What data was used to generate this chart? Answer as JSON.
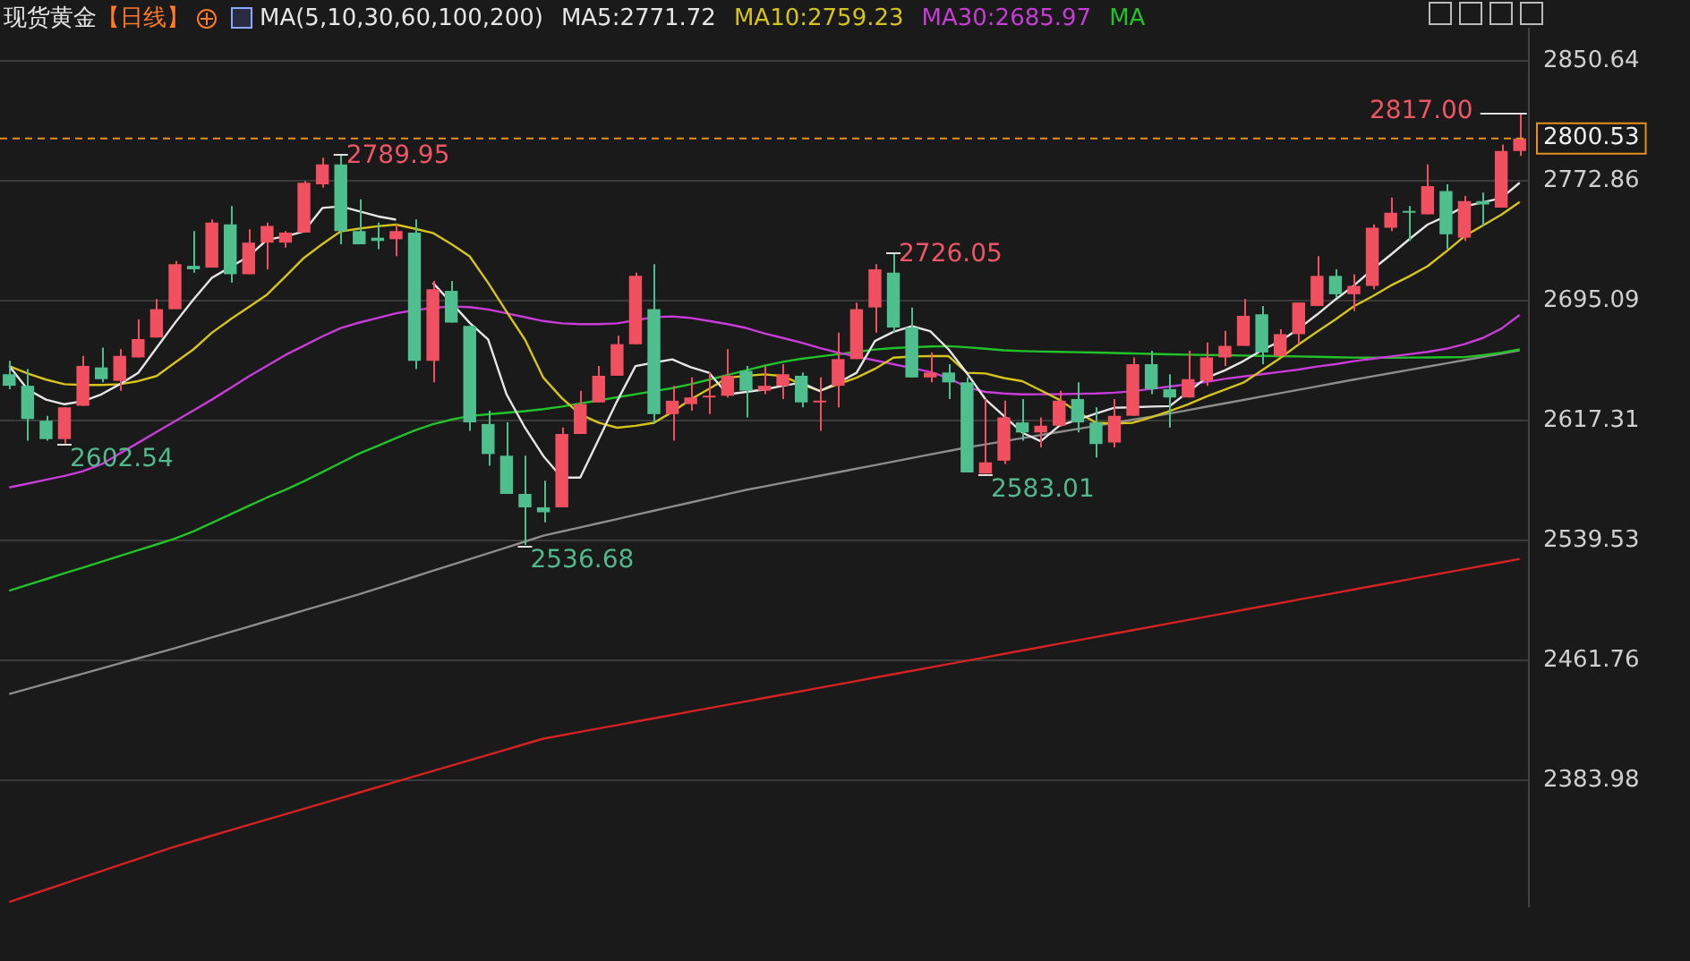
{
  "chart_data": {
    "type": "candlestick",
    "title": "现货黄金",
    "subtitle": "【日线】",
    "annotations": [
      "MA(5,10,30,60,100,200)",
      "2789.95",
      "2602.54",
      "2536.68",
      "2726.05",
      "2583.01",
      "2817.00"
    ],
    "categories": [
      null,
      null,
      null,
      null,
      null,
      null,
      null,
      null,
      null,
      null,
      null,
      null,
      null,
      null,
      null,
      null,
      null,
      null,
      null,
      null,
      null,
      null,
      null,
      null,
      null,
      null,
      null,
      null,
      null,
      null,
      null,
      null,
      null,
      null,
      null,
      null,
      null,
      null,
      null,
      null,
      null,
      null,
      null,
      null,
      null,
      null,
      null,
      null,
      null,
      null,
      null,
      null,
      null,
      null,
      null,
      null,
      null,
      null,
      null,
      null,
      null,
      null,
      null,
      null,
      null,
      null,
      null,
      null,
      null,
      null,
      null,
      null,
      null,
      null,
      null,
      null,
      null,
      null,
      null,
      null,
      null,
      null,
      null
    ],
    "ohlc": [
      [
        2647.5,
        2656.2,
        2637.8,
        2640.0
      ],
      [
        2640.0,
        2650.8,
        2604.3,
        2618.4
      ],
      [
        2617.3,
        2620.5,
        2604.3,
        2605.4
      ],
      [
        2605.4,
        2626.0,
        2602.54,
        2626.0
      ],
      [
        2627.0,
        2659.4,
        2627.0,
        2652.9
      ],
      [
        2651.9,
        2664.8,
        2642.2,
        2644.3
      ],
      [
        2643.2,
        2663.8,
        2636.8,
        2659.4
      ],
      [
        2658.4,
        2683.2,
        2658.4,
        2670.3
      ],
      [
        2671.3,
        2696.2,
        2671.3,
        2689.7
      ],
      [
        2689.7,
        2721.0,
        2689.7,
        2718.9
      ],
      [
        2717.8,
        2740.4,
        2713.4,
        2715.6
      ],
      [
        2716.7,
        2748.0,
        2716.7,
        2745.9
      ],
      [
        2744.8,
        2756.7,
        2707.0,
        2712.4
      ],
      [
        2712.4,
        2741.5,
        2712.4,
        2732.9
      ],
      [
        2732.9,
        2745.9,
        2715.6,
        2743.7
      ],
      [
        2732.9,
        2740.4,
        2729.7,
        2739.4
      ],
      [
        2739.4,
        2772.9,
        2739.4,
        2771.8
      ],
      [
        2770.7,
        2788.0,
        2768.5,
        2783.7
      ],
      [
        2783.7,
        2789.95,
        2731.8,
        2740.4
      ],
      [
        2740.4,
        2761.0,
        2731.8,
        2731.8
      ],
      [
        2736.1,
        2745.9,
        2728.6,
        2734.0
      ],
      [
        2735.1,
        2744.8,
        2724.2,
        2740.4
      ],
      [
        2739.4,
        2748.0,
        2650.8,
        2656.2
      ],
      [
        2656.2,
        2708.0,
        2642.2,
        2702.6
      ],
      [
        2701.6,
        2708.0,
        2681.0,
        2681.0
      ],
      [
        2678.9,
        2678.9,
        2610.8,
        2616.2
      ],
      [
        2615.2,
        2623.8,
        2588.1,
        2595.7
      ],
      [
        2594.6,
        2616.2,
        2569.8,
        2569.8
      ],
      [
        2569.8,
        2594.6,
        2536.68,
        2561.1
      ],
      [
        2561.1,
        2578.4,
        2551.4,
        2557.9
      ],
      [
        2561.1,
        2613.0,
        2561.1,
        2608.7
      ],
      [
        2608.7,
        2636.8,
        2608.7,
        2628.1
      ],
      [
        2629.2,
        2652.9,
        2629.2,
        2646.5
      ],
      [
        2646.5,
        2672.4,
        2646.5,
        2667.0
      ],
      [
        2667.0,
        2713.4,
        2667.0,
        2711.3
      ],
      [
        2689.7,
        2718.9,
        2615.2,
        2621.6
      ],
      [
        2621.6,
        2640.0,
        2604.3,
        2630.3
      ],
      [
        2628.1,
        2645.4,
        2623.8,
        2632.4
      ],
      [
        2632.4,
        2648.6,
        2621.6,
        2633.5
      ],
      [
        2633.5,
        2663.8,
        2632.4,
        2646.5
      ],
      [
        2649.7,
        2652.9,
        2619.5,
        2636.8
      ],
      [
        2636.8,
        2652.9,
        2634.6,
        2640.0
      ],
      [
        2640.0,
        2654.0,
        2631.4,
        2647.5
      ],
      [
        2646.5,
        2648.6,
        2626.0,
        2629.2
      ],
      [
        2629.2,
        2645.4,
        2610.8,
        2630.3
      ],
      [
        2640.0,
        2674.5,
        2626.0,
        2657.3
      ],
      [
        2657.3,
        2694.0,
        2657.3,
        2689.7
      ],
      [
        2690.8,
        2718.9,
        2674.5,
        2715.6
      ],
      [
        2713.4,
        2726.05,
        2674.5,
        2677.8
      ],
      [
        2677.8,
        2690.8,
        2645.4,
        2645.4
      ],
      [
        2645.4,
        2661.6,
        2642.2,
        2648.6
      ],
      [
        2648.6,
        2654.0,
        2631.4,
        2642.2
      ],
      [
        2642.2,
        2645.4,
        2583.8,
        2583.8
      ],
      [
        2583.01,
        2631.4,
        2583.01,
        2590.3
      ],
      [
        2591.4,
        2630.3,
        2589.2,
        2619.5
      ],
      [
        2616.2,
        2631.4,
        2604.3,
        2609.7
      ],
      [
        2609.7,
        2619.5,
        2600.0,
        2614.1
      ],
      [
        2614.1,
        2636.8,
        2614.1,
        2630.3
      ],
      [
        2631.4,
        2642.2,
        2609.7,
        2616.2
      ],
      [
        2616.2,
        2626.0,
        2593.5,
        2602.2
      ],
      [
        2603.2,
        2631.4,
        2600.0,
        2620.5
      ],
      [
        2620.5,
        2658.4,
        2620.5,
        2654.0
      ],
      [
        2654.0,
        2662.7,
        2634.6,
        2637.8
      ],
      [
        2637.8,
        2647.5,
        2613.0,
        2632.4
      ],
      [
        2632.4,
        2662.7,
        2632.4,
        2644.3
      ],
      [
        2643.2,
        2668.1,
        2640.0,
        2658.4
      ],
      [
        2658.4,
        2675.6,
        2652.9,
        2665.9
      ],
      [
        2665.9,
        2696.2,
        2665.9,
        2685.4
      ],
      [
        2686.4,
        2691.8,
        2654.0,
        2661.6
      ],
      [
        2659.4,
        2676.7,
        2659.4,
        2673.5
      ],
      [
        2673.5,
        2694.0,
        2667.0,
        2694.0
      ],
      [
        2691.8,
        2724.2,
        2691.8,
        2711.3
      ],
      [
        2711.3,
        2715.6,
        2697.2,
        2699.4
      ],
      [
        2699.4,
        2712.4,
        2688.6,
        2704.8
      ],
      [
        2704.8,
        2744.8,
        2702.6,
        2742.6
      ],
      [
        2742.6,
        2762.1,
        2740.4,
        2752.3
      ],
      [
        2753.4,
        2756.7,
        2734.0,
        2752.3
      ],
      [
        2751.3,
        2783.7,
        2751.3,
        2769.6
      ],
      [
        2766.4,
        2770.7,
        2728.6,
        2738.3
      ],
      [
        2736.1,
        2763.2,
        2734.0,
        2759.9
      ],
      [
        2759.9,
        2765.3,
        2743.7,
        2757.7
      ],
      [
        2755.6,
        2796.6,
        2755.6,
        2792.3
      ],
      [
        2792.3,
        2817.0,
        2789.1,
        2800.53
      ]
    ],
    "colors": [
      "#4fbf8f",
      "#4fbf8f",
      "#4fbf8f",
      "#f0505f",
      "#f0505f",
      "#4fbf8f",
      "#f0505f",
      "#f0505f",
      "#f0505f",
      "#f0505f",
      "#4fbf8f",
      "#f0505f",
      "#4fbf8f",
      "#f0505f",
      "#f0505f",
      "#f0505f",
      "#f0505f",
      "#f0505f",
      "#4fbf8f",
      "#4fbf8f",
      "#4fbf8f",
      "#f0505f",
      "#4fbf8f",
      "#f0505f",
      "#4fbf8f",
      "#4fbf8f",
      "#4fbf8f",
      "#4fbf8f",
      "#4fbf8f",
      "#4fbf8f",
      "#f0505f",
      "#f0505f",
      "#f0505f",
      "#f0505f",
      "#f0505f",
      "#4fbf8f",
      "#f0505f",
      "#f0505f",
      "#f0505f",
      "#f0505f",
      "#4fbf8f",
      "#f0505f",
      "#f0505f",
      "#4fbf8f",
      "#f0505f",
      "#f0505f",
      "#f0505f",
      "#f0505f",
      "#4fbf8f",
      "#4fbf8f",
      "#f0505f",
      "#4fbf8f",
      "#4fbf8f",
      "#f0505f",
      "#f0505f",
      "#4fbf8f",
      "#f0505f",
      "#f0505f",
      "#4fbf8f",
      "#4fbf8f",
      "#f0505f",
      "#f0505f",
      "#4fbf8f",
      "#4fbf8f",
      "#f0505f",
      "#f0505f",
      "#f0505f",
      "#f0505f",
      "#4fbf8f",
      "#f0505f",
      "#f0505f",
      "#f0505f",
      "#4fbf8f",
      "#f0505f",
      "#f0505f",
      "#f0505f",
      "#4fbf8f",
      "#f0505f",
      "#4fbf8f",
      "#f0505f",
      "#4fbf8f",
      "#f0505f",
      "#f0505f"
    ],
    "series": [
      {
        "type": "line",
        "name": "MA5:2771.72",
        "color": "#e6e6e6",
        "values": [
          2652.8,
          2637.6,
          2631,
          2628,
          2630,
          2634.4,
          2641,
          2648.4,
          2664.6,
          2680.8,
          2696,
          2710,
          2717,
          2724,
          2734.8,
          2737,
          2740.2,
          2755.4,
          2756.4,
          2753.2,
          2750,
          2747.8,
          null,
          2706.8,
          2694,
          2680.8,
          2670,
          2634.4,
          2612.8,
          2594.4,
          2580.4,
          2580.4,
          2605.2,
          2630,
          2652.8,
          2655,
          2657.1,
          2652,
          2648.4,
          2634.4,
          2636,
          2637.6,
          2640,
          2642,
          2636.6,
          2642,
          2648.4,
          2669,
          2675,
          2678.7,
          2675.4,
          2663.6,
          2648,
          2631.2,
          2620.4,
          2609.6,
          2604,
          2614,
          2618,
          2622,
          2625.8,
          2626,
          2626.5,
          2626.8,
          2636,
          2645.2,
          2650,
          2656,
          2663,
          2669,
          2677,
          2686.2,
          2696,
          2705,
          2715.4,
          2725,
          2735,
          2744.6,
          2750,
          2756.4,
          2759,
          2761.8,
          2771.72
        ]
      },
      {
        "type": "line",
        "name": "MA10:2759.23",
        "color": "#d6c41c",
        "values": [
          2652.8,
          2648,
          2644,
          2641,
          2640.5,
          2640.5,
          2641,
          2643,
          2646.3,
          2655,
          2663.6,
          2674.4,
          2683,
          2691,
          2699.2,
          2711,
          2723,
          2732,
          2740.2,
          2742,
          2743.5,
          2744.6,
          2742,
          2739.2,
          2732,
          2724,
          2706.8,
          2688,
          2670,
          2645.2,
          2632,
          2621.4,
          2616,
          2612.8,
          2614,
          2616,
          2623,
          2631.2,
          2638,
          2645.2,
          2646.5,
          2647.4,
          2646.3,
          2641,
          2636.6,
          2641,
          2645.2,
          2651,
          2658.2,
          2659,
          2659.2,
          2659.2,
          2648.4,
          2648,
          2645,
          2643,
          2637,
          2631,
          2623,
          2616,
          2615.5,
          2616,
          2619.5,
          2623.6,
          2628,
          2633,
          2637.5,
          2642,
          2650,
          2658,
          2666.8,
          2675,
          2683,
          2691.6,
          2698,
          2705,
          2711,
          2717.6,
          2727,
          2737,
          2744,
          2751,
          2759.23
        ]
      },
      {
        "type": "line",
        "name": "MA30:2685.97",
        "color": "#c83cd8",
        "values": [
          2574,
          2576.5,
          2579,
          2581.5,
          2584.5,
          2589,
          2596,
          2603,
          2610,
          2617,
          2624,
          2631,
          2638.5,
          2646,
          2653,
          2660,
          2666,
          2672,
          2677.5,
          2681,
          2684,
          2687,
          2689,
          2690.5,
          2691.5,
          2691,
          2689.5,
          2687,
          2684.5,
          2682,
          2680.5,
          2680,
          2680,
          2680.5,
          2682.5,
          2684.5,
          2685,
          2684,
          2682,
          2680,
          2677.5,
          2674,
          2671,
          2668,
          2664.5,
          2661.5,
          2659,
          2656.5,
          2654,
          2651.5,
          2649,
          2645,
          2639,
          2636,
          2635,
          2634.4,
          2634.5,
          2634.6,
          2634.8,
          2635,
          2635.5,
          2636.5,
          2638,
          2639.5,
          2641,
          2642.5,
          2644.5,
          2646,
          2647.5,
          2649,
          2650.5,
          2652.5,
          2654,
          2656,
          2657.5,
          2659,
          2660.5,
          2662,
          2664,
          2667,
          2671,
          2677,
          2685.97
        ]
      },
      {
        "type": "line",
        "name": "MA",
        "color": "#22c32a",
        "values": [
          2507,
          2510.8,
          2514.5,
          2518.3,
          2522,
          2525.8,
          2529.5,
          2533.3,
          2537,
          2540.8,
          2545.5,
          2551,
          2556.5,
          2562,
          2567.5,
          2572.5,
          2578,
          2584,
          2590,
          2596,
          2601,
          2606,
          2611,
          2615,
          2618,
          2620.4,
          2621.5,
          2622.5,
          2623.5,
          2624.8,
          2626.5,
          2628.5,
          2630.5,
          2632.5,
          2634.5,
          2636.5,
          2638.5,
          2641,
          2644,
          2647,
          2650,
          2653,
          2655.5,
          2657.5,
          2659,
          2660.5,
          2662,
          2663.5,
          2664.5,
          2665,
          2665.5,
          2665.7,
          2665,
          2664,
          2663,
          2662.5,
          2662.2,
          2662,
          2661.8,
          2661.6,
          2661.3,
          2661,
          2660.7,
          2660.4,
          2660.2,
          2660,
          2659.8,
          2659.6,
          2659.4,
          2659.2,
          2659,
          2658.8,
          2658.5,
          2658.3,
          2658.2,
          2658.2,
          2658.3,
          2658.4,
          2658.5,
          2658.6,
          2659.8,
          2661.5,
          2663.6
        ]
      },
      {
        "type": "line",
        "color": "#8c8c8c",
        "values": [
          2440,
          2443.3,
          2446.6,
          2449.9,
          2453.2,
          2456.5,
          2459.8,
          2463.1,
          2466.4,
          2469.7,
          2473.2,
          2476.7,
          2480.2,
          2483.7,
          2487.2,
          2490.7,
          2494.2,
          2497.7,
          2501.2,
          2504.7,
          2508.5,
          2512.3,
          2516.1,
          2519.9,
          2523.7,
          2527.5,
          2531.3,
          2535.1,
          2538.9,
          2542.7,
          2545.4,
          2548.1,
          2550.8,
          2553.5,
          2556.2,
          2558.9,
          2561.6,
          2564.3,
          2567,
          2569.7,
          2572.4,
          2574.7,
          2577,
          2579.3,
          2581.6,
          2583.9,
          2586.2,
          2588.5,
          2590.8,
          2593.1,
          2595.4,
          2597.7,
          2600,
          2602,
          2604,
          2606,
          2608,
          2610,
          2612,
          2614,
          2616,
          2618,
          2620,
          2622,
          2624.2,
          2626.4,
          2628.6,
          2630.8,
          2633,
          2635.2,
          2637.4,
          2639.6,
          2641.8,
          2644,
          2646.1,
          2648.2,
          2650.3,
          2652.4,
          2654.5,
          2656.6,
          2658.7,
          2660.8,
          2662.9
        ]
      },
      {
        "type": "line",
        "color": "#d42222",
        "values": [
          2305,
          2309,
          2313,
          2317,
          2321,
          2325,
          2329,
          2333,
          2337,
          2341,
          2344.5,
          2348,
          2351.5,
          2355,
          2358.5,
          2362,
          2365.5,
          2369,
          2372.5,
          2376,
          2379.5,
          2383,
          2386.5,
          2390,
          2393.5,
          2397,
          2400.5,
          2404,
          2407.5,
          2411,
          2413.2,
          2415.4,
          2417.6,
          2419.8,
          2422,
          2424.2,
          2426.4,
          2428.6,
          2430.8,
          2433,
          2435.2,
          2437.4,
          2439.6,
          2441.8,
          2444,
          2446.2,
          2448.4,
          2450.6,
          2452.8,
          2455,
          2457.2,
          2459.4,
          2461.6,
          2463.8,
          2466,
          2468.2,
          2470.4,
          2472.6,
          2474.8,
          2477,
          2479.2,
          2481.4,
          2483.6,
          2485.8,
          2488,
          2490.2,
          2492.4,
          2494.6,
          2496.8,
          2499,
          2501.2,
          2503.4,
          2505.6,
          2507.8,
          2510,
          2512.2,
          2514.4,
          2516.6,
          2518.8,
          2521,
          2523.2,
          2525.4,
          2527.6
        ]
      }
    ],
    "ylim": [
      2302,
      2872
    ],
    "yticks": [
      2383.98,
      2461.76,
      2539.53,
      2617.31,
      2695.09,
      2772.86,
      2850.64
    ],
    "ref_lines": [
      {
        "axis": "y",
        "value": 2800.53,
        "label": "2800.53",
        "color": "#e8901c",
        "line_style": "dashed"
      }
    ],
    "grid": "y",
    "legend": "top"
  }
}
